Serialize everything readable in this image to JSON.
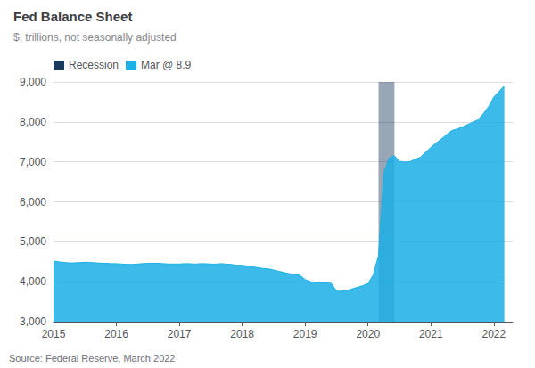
{
  "chart_data": {
    "type": "area",
    "title": "Fed Balance Sheet",
    "subtitle": "$, trillions, not seasonally adjusted",
    "annotations": [
      "Source: Federal Reserve, March 2022"
    ],
    "x": [
      2015.0,
      2015.083,
      2015.167,
      2015.25,
      2015.333,
      2015.417,
      2015.5,
      2015.583,
      2015.667,
      2015.75,
      2015.833,
      2015.917,
      2016.0,
      2016.083,
      2016.167,
      2016.25,
      2016.333,
      2016.417,
      2016.5,
      2016.583,
      2016.667,
      2016.75,
      2016.833,
      2016.917,
      2017.0,
      2017.083,
      2017.167,
      2017.25,
      2017.333,
      2017.417,
      2017.5,
      2017.583,
      2017.667,
      2017.75,
      2017.833,
      2017.917,
      2018.0,
      2018.083,
      2018.167,
      2018.25,
      2018.333,
      2018.417,
      2018.5,
      2018.583,
      2018.667,
      2018.75,
      2018.833,
      2018.917,
      2019.0,
      2019.083,
      2019.167,
      2019.25,
      2019.333,
      2019.417,
      2019.5,
      2019.583,
      2019.667,
      2019.75,
      2019.833,
      2019.917,
      2020.0,
      2020.083,
      2020.167,
      2020.25,
      2020.333,
      2020.417,
      2020.5,
      2020.583,
      2020.667,
      2020.75,
      2020.833,
      2020.917,
      2021.0,
      2021.083,
      2021.167,
      2021.25,
      2021.333,
      2021.417,
      2021.5,
      2021.583,
      2021.667,
      2021.75,
      2021.833,
      2021.917,
      2022.0,
      2022.083,
      2022.167
    ],
    "series": [
      {
        "name": "Mar @ 8.9",
        "color": "#1aafe6",
        "values": [
          4516,
          4497,
          4481,
          4470,
          4472,
          4478,
          4488,
          4482,
          4472,
          4464,
          4461,
          4452,
          4452,
          4443,
          4435,
          4432,
          4443,
          4452,
          4462,
          4462,
          4461,
          4452,
          4443,
          4443,
          4443,
          4452,
          4451,
          4441,
          4452,
          4451,
          4442,
          4441,
          4452,
          4441,
          4431,
          4412,
          4412,
          4393,
          4372,
          4352,
          4332,
          4321,
          4292,
          4261,
          4231,
          4202,
          4181,
          4162,
          4054,
          4001,
          3982,
          3971,
          3971,
          3961,
          3762,
          3762,
          3782,
          3822,
          3862,
          3902,
          3952,
          4172,
          4663,
          6713,
          7093,
          7153,
          7013,
          6993,
          7003,
          7063,
          7113,
          7243,
          7363,
          7473,
          7573,
          7683,
          7783,
          7823,
          7873,
          7933,
          7993,
          8053,
          8203,
          8383,
          8623,
          8763,
          8900
        ]
      }
    ],
    "spans": [
      {
        "name": "Recession",
        "color": "#1a3a5c",
        "x": [
          2020.167,
          2020.42
        ]
      }
    ],
    "xlim": [
      2015.0,
      2022.3
    ],
    "xticks": [
      2015,
      2016,
      2017,
      2018,
      2019,
      2020,
      2021,
      2022
    ],
    "ylim": [
      3000,
      9000
    ],
    "yticks": [
      {
        "value": 3000,
        "label": "3,000"
      },
      {
        "value": 4000,
        "label": "4,000"
      },
      {
        "value": 5000,
        "label": "5,000"
      },
      {
        "value": 6000,
        "label": "6,000"
      },
      {
        "value": 7000,
        "label": "7,000"
      },
      {
        "value": 8000,
        "label": "8,000"
      },
      {
        "value": 9000,
        "label": "9,000"
      }
    ],
    "grid": "y",
    "legend": "upper left"
  }
}
